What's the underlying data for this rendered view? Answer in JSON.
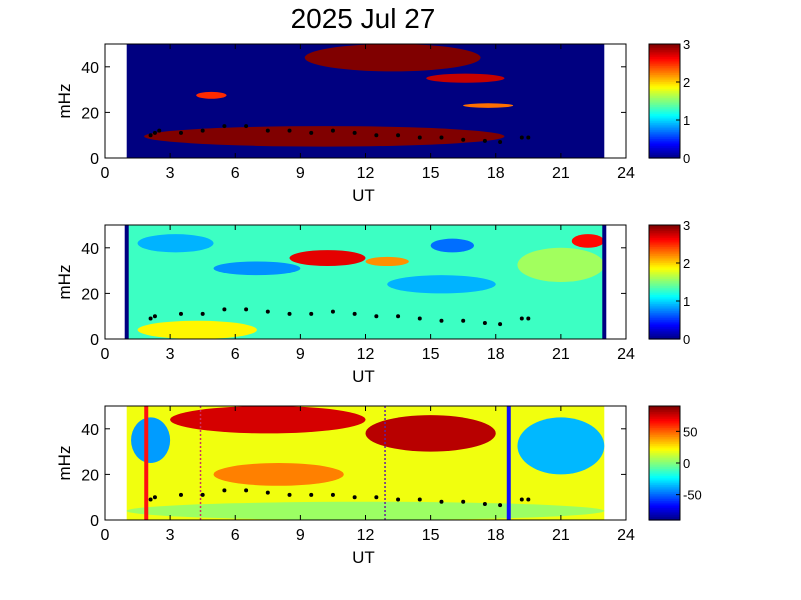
{
  "title": "2025 Jul 27",
  "chart_data": [
    {
      "type": "heatmap",
      "xlabel": "UT",
      "ylabel": "mHz",
      "xlim": [
        0,
        24
      ],
      "ylim": [
        0,
        50
      ],
      "xticks": [
        "0",
        "3",
        "6",
        "9",
        "12",
        "15",
        "18",
        "21",
        "24"
      ],
      "yticks": [
        "0",
        "20",
        "40"
      ],
      "data_x_range": [
        1,
        23
      ],
      "colorbar": {
        "range": [
          0,
          3
        ],
        "ticks": [
          "0",
          "1",
          "2",
          "3"
        ]
      },
      "background_value": 0,
      "blobs": [
        {
          "x": [
            9.2,
            17.3
          ],
          "y": [
            38,
            50
          ],
          "value": 3
        },
        {
          "x": [
            14.8,
            18.4
          ],
          "y": [
            33,
            37
          ],
          "value": 2.8
        },
        {
          "x": [
            4.2,
            5.6
          ],
          "y": [
            26,
            29
          ],
          "value": 2.5
        },
        {
          "x": [
            16.5,
            18.8
          ],
          "y": [
            22,
            24
          ],
          "value": 2.3
        },
        {
          "x": [
            1.8,
            18.4
          ],
          "y": [
            5,
            14
          ],
          "value": 3
        }
      ],
      "tracks": [
        {
          "name": "",
          "x": [
            2.1,
            2.3,
            2.5,
            3.5,
            4.5,
            5.5,
            6.5,
            7.5,
            8.5,
            9.5,
            10.5,
            11.5,
            12.5,
            13.5,
            14.5,
            15.5,
            16.5,
            17.5,
            18.2,
            19.2,
            19.5
          ],
          "y": [
            10,
            11,
            12,
            11,
            12,
            14,
            14,
            12,
            12,
            11,
            12,
            11,
            10,
            10,
            9,
            9,
            8,
            7.5,
            7,
            9,
            9
          ]
        }
      ]
    },
    {
      "type": "heatmap",
      "xlabel": "UT",
      "ylabel": "mHz",
      "xlim": [
        0,
        24
      ],
      "ylim": [
        0,
        50
      ],
      "xticks": [
        "0",
        "3",
        "6",
        "9",
        "12",
        "15",
        "18",
        "21",
        "24"
      ],
      "yticks": [
        "0",
        "20",
        "40"
      ],
      "data_x_range": [
        1,
        23
      ],
      "colorbar": {
        "range": [
          0,
          3
        ],
        "ticks": [
          "0",
          "1",
          "2",
          "3"
        ]
      },
      "background_value": 1.3,
      "blobs": [
        {
          "x": [
            8.5,
            12
          ],
          "y": [
            32,
            39
          ],
          "value": 2.7
        },
        {
          "x": [
            12,
            14
          ],
          "y": [
            32,
            36
          ],
          "value": 2.2
        },
        {
          "x": [
            1.5,
            5
          ],
          "y": [
            38,
            46
          ],
          "value": 0.9
        },
        {
          "x": [
            5,
            9
          ],
          "y": [
            28,
            34
          ],
          "value": 0.8
        },
        {
          "x": [
            13,
            18
          ],
          "y": [
            20,
            28
          ],
          "value": 0.9
        },
        {
          "x": [
            15,
            17
          ],
          "y": [
            38,
            44
          ],
          "value": 0.7
        },
        {
          "x": [
            1.5,
            7
          ],
          "y": [
            0,
            8
          ],
          "value": 1.9
        },
        {
          "x": [
            19,
            23
          ],
          "y": [
            25,
            40
          ],
          "value": 1.6
        },
        {
          "x": [
            21.5,
            23
          ],
          "y": [
            40,
            46
          ],
          "value": 2.6
        }
      ],
      "vertical_lines": [
        1,
        23
      ],
      "tracks": [
        {
          "name": "",
          "x": [
            2.1,
            2.3,
            3.5,
            4.5,
            5.5,
            6.5,
            7.5,
            8.5,
            9.5,
            10.5,
            11.5,
            12.5,
            13.5,
            14.5,
            15.5,
            16.5,
            17.5,
            18.2,
            19.2,
            19.5
          ],
          "y": [
            9,
            10,
            11,
            11,
            13,
            13,
            12,
            11,
            11,
            12,
            11,
            10,
            10,
            9,
            8,
            8,
            7,
            6.5,
            9,
            9
          ]
        }
      ]
    },
    {
      "type": "heatmap",
      "xlabel": "UT",
      "ylabel": "mHz",
      "xlim": [
        0,
        24
      ],
      "ylim": [
        0,
        50
      ],
      "xticks": [
        "0",
        "3",
        "6",
        "9",
        "12",
        "15",
        "18",
        "21",
        "24"
      ],
      "yticks": [
        "0",
        "20",
        "40"
      ],
      "data_x_range": [
        1,
        23
      ],
      "colorbar": {
        "range": [
          -90,
          90
        ],
        "ticks": [
          "-50",
          "0",
          "50"
        ]
      },
      "background_value": 20,
      "blobs": [
        {
          "x": [
            3,
            12
          ],
          "y": [
            38,
            50
          ],
          "value": 75
        },
        {
          "x": [
            12,
            18
          ],
          "y": [
            30,
            46
          ],
          "value": 80
        },
        {
          "x": [
            5,
            11
          ],
          "y": [
            15,
            25
          ],
          "value": 45
        },
        {
          "x": [
            1.2,
            3
          ],
          "y": [
            25,
            45
          ],
          "value": -40
        },
        {
          "x": [
            19,
            23
          ],
          "y": [
            20,
            45
          ],
          "value": -35
        },
        {
          "x": [
            1,
            23
          ],
          "y": [
            0,
            8
          ],
          "value": 5
        }
      ],
      "vertical_lines": [
        {
          "x": 1.9,
          "color": "#ff1010",
          "style": "solid"
        },
        {
          "x": 18.6,
          "color": "#1010ff",
          "style": "solid"
        },
        {
          "x": 4.4,
          "color": "#d03060",
          "style": "dotted"
        },
        {
          "x": 12.9,
          "color": "#6020a0",
          "style": "dotted"
        }
      ],
      "tracks": [
        {
          "name": "",
          "x": [
            2.1,
            2.3,
            3.5,
            4.5,
            5.5,
            6.5,
            7.5,
            8.5,
            9.5,
            10.5,
            11.5,
            12.5,
            13.5,
            14.5,
            15.5,
            16.5,
            17.5,
            18.2,
            19.2,
            19.5
          ],
          "y": [
            9,
            10,
            11,
            11,
            13,
            13,
            12,
            11,
            11,
            11,
            10,
            10,
            9,
            9,
            8,
            8,
            7,
            6.5,
            9,
            9
          ]
        }
      ]
    }
  ]
}
